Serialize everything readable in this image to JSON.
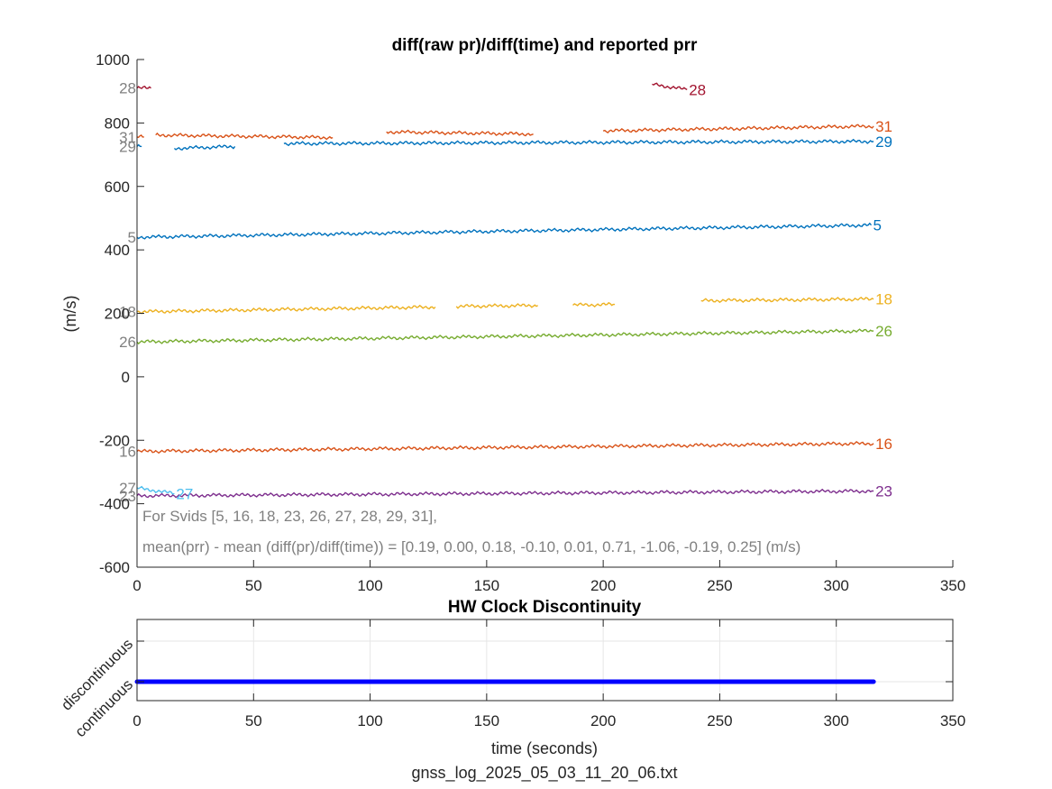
{
  "file_caption": "gnss_log_2025_05_03_11_20_06.txt",
  "chart_data": [
    {
      "type": "line",
      "title": "diff(raw pr)/diff(time) and reported prr",
      "xlabel": "",
      "ylabel": "(m/s)",
      "xlim": [
        0,
        350
      ],
      "ylim": [
        -600,
        1000
      ],
      "xticks": [
        "0",
        "50",
        "100",
        "150",
        "200",
        "250",
        "300",
        "350"
      ],
      "yticks": [
        "-600",
        "-400",
        "-200",
        "0",
        "200",
        "400",
        "600",
        "800",
        "1000"
      ],
      "grid": false,
      "annotations": [
        "For Svids [5, 16, 18, 23, 26, 27, 28, 29, 31],",
        "mean(prr) - mean (diff(pr)/diff(time)) = [0.19, 0.00, 0.18, -0.10, 0.01, 0.71, -1.06, -0.19, 0.25] (m/s)"
      ],
      "series": [
        {
          "name": "28",
          "color": "#A2142F",
          "start_label": "28",
          "end_label": "28",
          "segments": [
            [
              [
                0,
                910
              ],
              [
                6,
                910
              ]
            ],
            [
              [
                221,
                922
              ],
              [
                236,
                905
              ]
            ]
          ]
        },
        {
          "name": "31",
          "color": "#D95319",
          "start_label": "31",
          "end_label": "31",
          "segments": [
            [
              [
                0,
                756
              ],
              [
                3,
                756
              ]
            ],
            [
              [
                8,
                762
              ],
              [
                84,
                754
              ]
            ],
            [
              [
                107,
                772
              ],
              [
                170,
                765
              ]
            ],
            [
              [
                200,
                775
              ],
              [
                316,
                790
              ]
            ]
          ]
        },
        {
          "name": "29",
          "color": "#0072BD",
          "start_label": "29",
          "end_label": "29",
          "segments": [
            [
              [
                0,
                726
              ],
              [
                2,
                726
              ]
            ],
            [
              [
                16,
                720
              ],
              [
                42,
                726
              ]
            ],
            [
              [
                63,
                735
              ],
              [
                316,
                742
              ]
            ]
          ]
        },
        {
          "name": "5",
          "color": "#0072BD",
          "start_label": "5",
          "end_label": "5",
          "segments": [
            [
              [
                0,
                440
              ],
              [
                315,
                478
              ]
            ]
          ]
        },
        {
          "name": "18",
          "color": "#EDB120",
          "start_label": "18",
          "end_label": "18",
          "segments": [
            [
              [
                0,
                205
              ],
              [
                128,
                220
              ]
            ],
            [
              [
                137,
                222
              ],
              [
                172,
                225
              ]
            ],
            [
              [
                187,
                226
              ],
              [
                205,
                228
              ]
            ],
            [
              [
                242,
                240
              ],
              [
                316,
                245
              ]
            ]
          ]
        },
        {
          "name": "26",
          "color": "#77AC30",
          "start_label": "26",
          "end_label": "26",
          "segments": [
            [
              [
                0,
                110
              ],
              [
                316,
                145
              ]
            ]
          ]
        },
        {
          "name": "16",
          "color": "#D95319",
          "start_label": "16",
          "end_label": "16",
          "segments": [
            [
              [
                0,
                -235
              ],
              [
                316,
                -210
              ]
            ]
          ]
        },
        {
          "name": "27",
          "color": "#4DBEEE",
          "start_label": "27",
          "end_label": "27",
          "segments": [
            [
              [
                0,
                -350
              ],
              [
                16,
                -368
              ]
            ]
          ]
        },
        {
          "name": "23",
          "color": "#7E2F8E",
          "start_label": "23",
          "end_label": "23",
          "segments": [
            [
              [
                0,
                -375
              ],
              [
                316,
                -360
              ]
            ]
          ]
        }
      ]
    },
    {
      "type": "scatter",
      "title": "HW Clock Discontinuity",
      "xlabel": "time (seconds)",
      "ylabel": "",
      "xlim": [
        0,
        350
      ],
      "xticks": [
        "0",
        "50",
        "100",
        "150",
        "200",
        "250",
        "300",
        "350"
      ],
      "yticks": [
        "continuous",
        "discontinuous"
      ],
      "grid": true,
      "series": [
        {
          "color": "#0000FF",
          "x_range": [
            0,
            316
          ],
          "value": "continuous"
        }
      ]
    }
  ]
}
